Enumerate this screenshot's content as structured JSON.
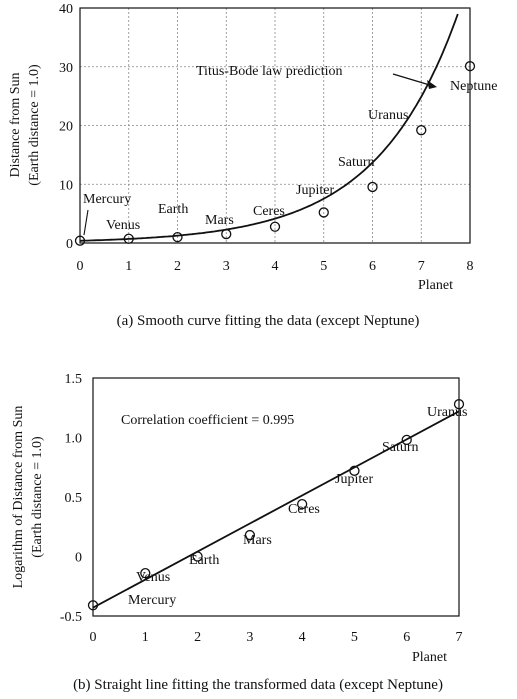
{
  "chart_data": [
    {
      "type": "scatter",
      "xlabel": "Planet",
      "ylabel_line1": "Distance from Sun",
      "ylabel_line2": "(Earth distance = 1.0)",
      "xlim": [
        0,
        8
      ],
      "ylim": [
        0,
        40
      ],
      "xticks": [
        "0",
        "1",
        "2",
        "3",
        "4",
        "5",
        "6",
        "7",
        "8"
      ],
      "yticks": [
        "0",
        "10",
        "20",
        "30",
        "40"
      ],
      "grid": true,
      "points": [
        {
          "x": 0,
          "y": 0.39,
          "name": "Mercury"
        },
        {
          "x": 1,
          "y": 0.72,
          "name": "Venus"
        },
        {
          "x": 2,
          "y": 1.0,
          "name": "Earth"
        },
        {
          "x": 3,
          "y": 1.52,
          "name": "Mars"
        },
        {
          "x": 4,
          "y": 2.77,
          "name": "Ceres"
        },
        {
          "x": 5,
          "y": 5.2,
          "name": "Jupiter"
        },
        {
          "x": 6,
          "y": 9.54,
          "name": "Saturn"
        },
        {
          "x": 7,
          "y": 19.2,
          "name": "Uranus"
        },
        {
          "x": 8,
          "y": 30.1,
          "name": "Neptune"
        }
      ],
      "curve_label": "Titus-Bode law prediction",
      "curve_fit": {
        "a": 0.38,
        "b": 0.5975
      },
      "caption": "(a) Smooth curve fitting the data (except Neptune)"
    },
    {
      "type": "scatter",
      "xlabel": "Planet",
      "ylabel_line1": "Logarithm of Distance from Sun",
      "ylabel_line2": "(Earth distance = 1.0)",
      "xlim": [
        0,
        7
      ],
      "ylim": [
        -0.5,
        1.5
      ],
      "xticks": [
        "0",
        "1",
        "2",
        "3",
        "4",
        "5",
        "6",
        "7"
      ],
      "yticks": [
        "-0.5",
        "0",
        "0.5",
        "1.0",
        "1.5"
      ],
      "grid": false,
      "points": [
        {
          "x": 0,
          "y": -0.41,
          "name": "Mercury"
        },
        {
          "x": 1,
          "y": -0.14,
          "name": "Venus"
        },
        {
          "x": 2,
          "y": 0.0,
          "name": "Earth"
        },
        {
          "x": 3,
          "y": 0.18,
          "name": "Mars"
        },
        {
          "x": 4,
          "y": 0.44,
          "name": "Ceres"
        },
        {
          "x": 5,
          "y": 0.72,
          "name": "Jupiter"
        },
        {
          "x": 6,
          "y": 0.98,
          "name": "Saturn"
        },
        {
          "x": 7,
          "y": 1.28,
          "name": "Uranus"
        }
      ],
      "fit_line": {
        "x": [
          0,
          7
        ],
        "y": [
          -0.43,
          1.22
        ]
      },
      "annotation": "Correlation coefficient = 0.995",
      "caption": "(b) Straight line fitting the transformed data (except Neptune)"
    }
  ]
}
